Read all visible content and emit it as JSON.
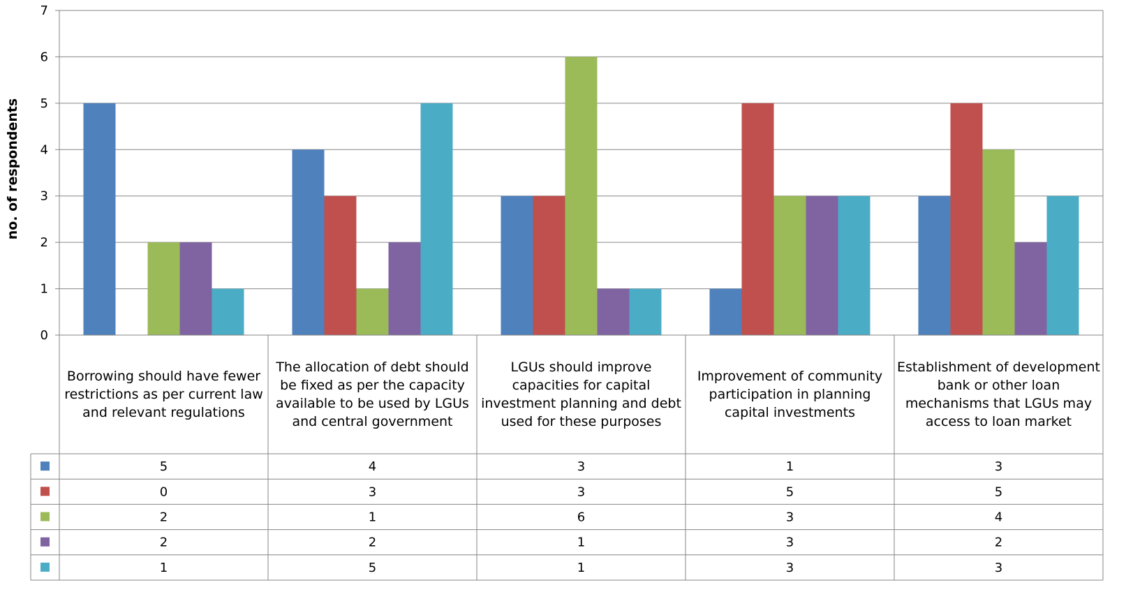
{
  "chart_data": {
    "type": "bar",
    "ylabel": "no. of respondents",
    "ylim": [
      0,
      7
    ],
    "yticks": [
      "0",
      "1",
      "2",
      "3",
      "4",
      "5",
      "6",
      "7"
    ],
    "grid": true,
    "legend": "data-table",
    "categories": [
      "Borrowing should have fewer restrictions as per current law and relevant regulations",
      "The allocation of debt should be fixed as per the capacity available to be used by LGUs and central government",
      "LGUs should improve capacities for capital investment planning and debt used for these purposes",
      "Improvement of community participation in planning capital investments",
      "Establishment of development bank or other loan mechanisms that LGUs may access to loan market"
    ],
    "series": [
      {
        "color": "#4f81bd",
        "values": [
          5,
          4,
          3,
          1,
          3
        ]
      },
      {
        "color": "#c0504d",
        "values": [
          0,
          3,
          3,
          5,
          5
        ]
      },
      {
        "color": "#9bbb59",
        "values": [
          2,
          1,
          6,
          3,
          4
        ]
      },
      {
        "color": "#8064a2",
        "values": [
          2,
          2,
          1,
          3,
          2
        ]
      },
      {
        "color": "#4bacc6",
        "values": [
          1,
          5,
          1,
          3,
          3
        ]
      }
    ]
  }
}
